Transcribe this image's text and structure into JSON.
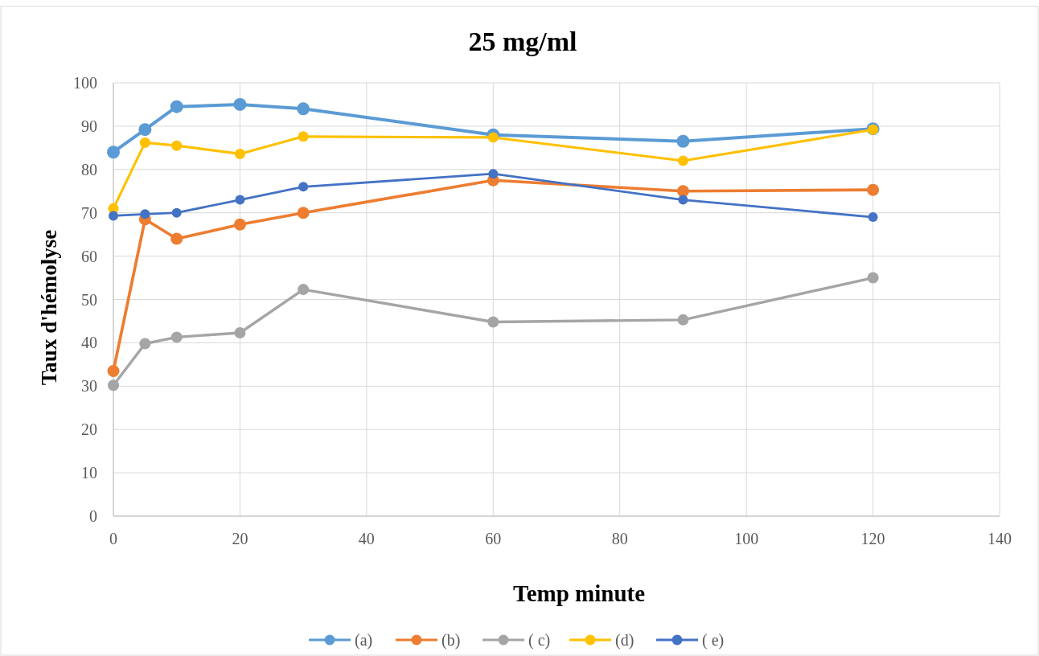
{
  "chart_data": {
    "type": "line",
    "title": "25 mg/ml",
    "xlabel": "Temp minute",
    "ylabel": "Taux d'hémolyse",
    "xlim": [
      0,
      140
    ],
    "xticks": [
      0,
      20,
      40,
      60,
      80,
      100,
      120,
      140
    ],
    "ylim": [
      0,
      100
    ],
    "yticks": [
      0,
      10,
      20,
      30,
      40,
      50,
      60,
      70,
      80,
      90,
      100
    ],
    "grid": true,
    "legend": "bottom",
    "marker": "circle",
    "line_style": "solid",
    "x": [
      0,
      5,
      10,
      20,
      30,
      60,
      90,
      120
    ],
    "series": [
      {
        "name": "(a)",
        "color": "#5b9bd5",
        "values": [
          84,
          89.2,
          94.5,
          95,
          94,
          88,
          86.5,
          89.4
        ]
      },
      {
        "name": "(b)",
        "color": "#ed7d31",
        "values": [
          33.5,
          68.5,
          64,
          67.3,
          70,
          77.5,
          75,
          75.3
        ]
      },
      {
        "name": "( c)",
        "color": "#a5a5a5",
        "values": [
          30.2,
          39.8,
          41.3,
          42.3,
          52.3,
          44.8,
          45.3,
          55
        ]
      },
      {
        "name": "(d)",
        "color": "#ffc000",
        "values": [
          71,
          86.2,
          85.5,
          83.6,
          87.6,
          87.4,
          82,
          89.2
        ]
      },
      {
        "name": "( e)",
        "color": "#4472c4",
        "values": [
          69.3,
          69.7,
          70,
          73,
          76,
          79,
          73,
          69
        ]
      }
    ]
  }
}
